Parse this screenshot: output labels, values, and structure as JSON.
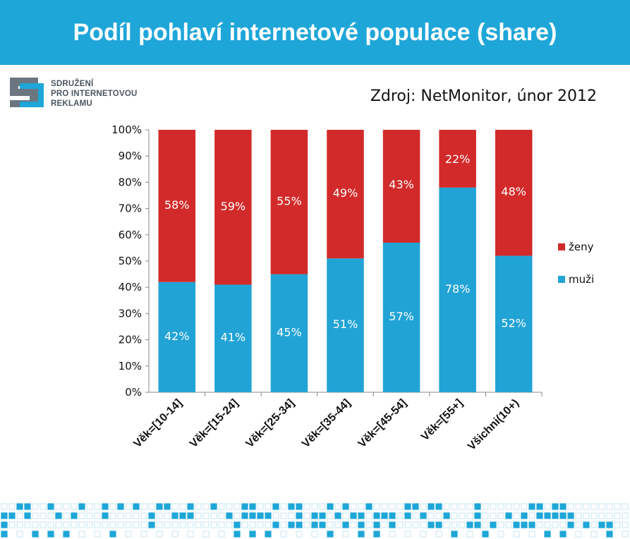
{
  "title": "Podíl pohlaví internetové populace (share)",
  "logo": {
    "lines": [
      "SDRUŽENÍ",
      "PRO INTERNETOVOU",
      "REKLAMU"
    ],
    "icon": "spir-logo-icon"
  },
  "source": "Zdroj: NetMonitor, únor 2012",
  "colors": {
    "header": "#1ea6d8",
    "muzi": "#21a3d5",
    "zeny": "#d22a2a",
    "footer_dark": "#1ea6d8",
    "footer_light": "#cfe9f5"
  },
  "chart_data": {
    "type": "bar",
    "stacked": true,
    "categories": [
      "Věk=[10-14]",
      "Věk=[15-24]",
      "Věk=[25-34]",
      "Věk=[35-44]",
      "Věk=[45-54]",
      "Věk=[55+]",
      "Všichni(10+)"
    ],
    "series": [
      {
        "name": "muži",
        "values": [
          42,
          41,
          45,
          51,
          57,
          78,
          52
        ],
        "labels": [
          "42%",
          "41%",
          "45%",
          "51%",
          "57%",
          "78%",
          "52%"
        ]
      },
      {
        "name": "ženy",
        "values": [
          58,
          59,
          55,
          49,
          43,
          22,
          48
        ],
        "labels": [
          "58%",
          "59%",
          "55%",
          "49%",
          "43%",
          "22%",
          "48%"
        ]
      }
    ],
    "legend": [
      "ženy",
      "muži"
    ],
    "legend_position": "right",
    "ylim": [
      0,
      100
    ],
    "yticks": [
      "0%",
      "10%",
      "20%",
      "30%",
      "40%",
      "50%",
      "60%",
      "70%",
      "80%",
      "90%",
      "100%"
    ],
    "grid": false
  }
}
